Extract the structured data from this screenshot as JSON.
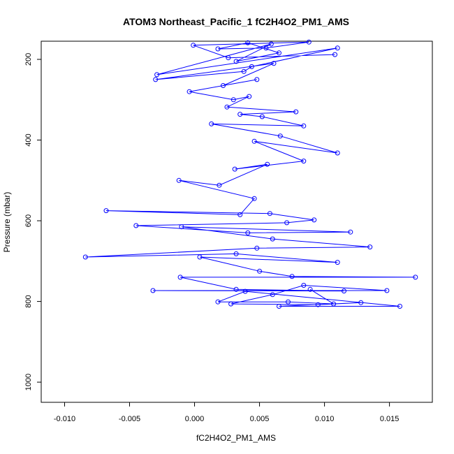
{
  "chart_data": {
    "type": "scatter",
    "title": "ATOM3 Northeast_Pacific_1 fC2H4O2_PM1_AMS",
    "xlabel": "fC2H4O2_PM1_AMS",
    "ylabel": "Pressure (mbar)",
    "xlim": [
      -0.0118,
      0.0183
    ],
    "ylim": [
      1050,
      155
    ],
    "y_reversed": true,
    "grid": false,
    "legend": "none",
    "x_ticks": [
      -0.01,
      -0.005,
      0.0,
      0.005,
      0.01,
      0.015
    ],
    "x_tick_labels": [
      "-0.010",
      "-0.005",
      "0.000",
      "0.005",
      "0.010",
      "0.015"
    ],
    "y_ticks": [
      200,
      400,
      600,
      800,
      1000
    ],
    "y_tick_labels": [
      "200",
      "400",
      "600",
      "800",
      "1000"
    ],
    "series": [
      {
        "color": "#0000ff",
        "marker": "open-circle",
        "connected": true,
        "points": [
          [
            0.0108,
            188
          ],
          [
            0.0026,
            196
          ],
          [
            -0.0001,
            165
          ],
          [
            0.0088,
            157
          ],
          [
            0.0055,
            172
          ],
          [
            0.0018,
            174
          ],
          [
            0.0041,
            159
          ],
          [
            0.0065,
            184
          ],
          [
            0.0032,
            205
          ],
          [
            0.0059,
            162
          ],
          [
            -0.0029,
            238
          ],
          [
            0.011,
            172
          ],
          [
            0.0044,
            218
          ],
          [
            0.0038,
            230
          ],
          [
            -0.003,
            250
          ],
          [
            0.0061,
            210
          ],
          [
            0.0022,
            265
          ],
          [
            0.0048,
            250
          ],
          [
            -0.0004,
            280
          ],
          [
            0.003,
            300
          ],
          [
            0.0042,
            292
          ],
          [
            0.0025,
            318
          ],
          [
            0.0078,
            330
          ],
          [
            0.0035,
            336
          ],
          [
            0.0052,
            342
          ],
          [
            0.0084,
            365
          ],
          [
            0.0013,
            360
          ],
          [
            0.0066,
            390
          ],
          [
            0.011,
            432
          ],
          [
            0.0046,
            403
          ],
          [
            0.0084,
            452
          ],
          [
            0.0031,
            472
          ],
          [
            0.0056,
            460
          ],
          [
            0.0019,
            512
          ],
          [
            -0.0012,
            500
          ],
          [
            0.0046,
            545
          ],
          [
            0.0035,
            585
          ],
          [
            -0.0068,
            575
          ],
          [
            0.0058,
            582
          ],
          [
            0.0092,
            598
          ],
          [
            0.0071,
            605
          ],
          [
            -0.0045,
            612
          ],
          [
            0.0041,
            630
          ],
          [
            0.012,
            628
          ],
          [
            -0.001,
            615
          ],
          [
            0.006,
            645
          ],
          [
            0.0135,
            665
          ],
          [
            0.0048,
            668
          ],
          [
            -0.0084,
            690
          ],
          [
            0.0032,
            682
          ],
          [
            0.011,
            703
          ],
          [
            0.0004,
            690
          ],
          [
            0.005,
            725
          ],
          [
            0.0075,
            738
          ],
          [
            0.017,
            740
          ],
          [
            -0.0011,
            740
          ],
          [
            0.0032,
            770
          ],
          [
            0.0115,
            774
          ],
          [
            -0.0032,
            773
          ],
          [
            0.0148,
            773
          ],
          [
            0.0084,
            760
          ],
          [
            0.006,
            783
          ],
          [
            0.0028,
            806
          ],
          [
            0.0095,
            808
          ],
          [
            0.0128,
            803
          ],
          [
            0.0065,
            812
          ],
          [
            0.0158,
            812
          ],
          [
            0.0039,
            775
          ],
          [
            0.0018,
            801
          ],
          [
            0.0072,
            801
          ],
          [
            0.0107,
            806
          ],
          [
            0.0089,
            770
          ]
        ]
      }
    ]
  }
}
